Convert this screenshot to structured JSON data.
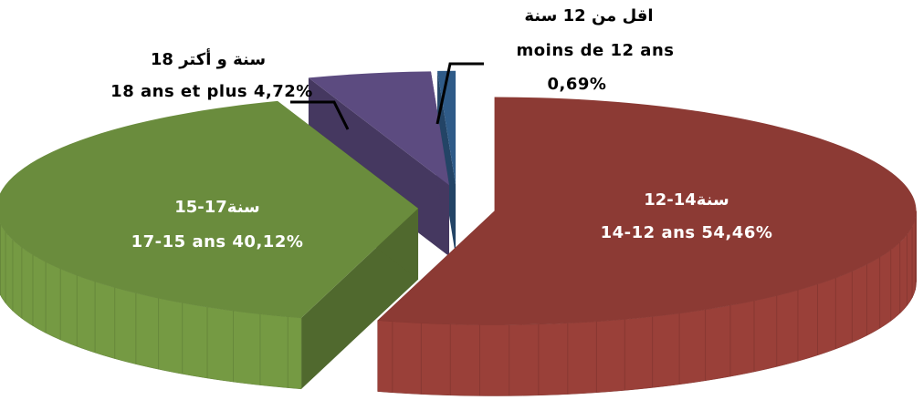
{
  "chart_data": {
    "type": "pie",
    "labels_ar": [
      "12-14سنة",
      "15-17سنة",
      "18 سنة و أكتر",
      "اقل من 12 سنة"
    ],
    "categories": [
      "14-12 ans",
      "17-15 ans",
      "18 ans et plus",
      "moins de 12 ans"
    ],
    "values": [
      54.46,
      40.12,
      4.72,
      0.69
    ],
    "value_labels": [
      "54,46%",
      "40,12%",
      "4,72%",
      "0,69%"
    ],
    "colors": [
      "#8c3a34",
      "#6a8c3d",
      "#5c4b80",
      "#2f5b88"
    ]
  }
}
